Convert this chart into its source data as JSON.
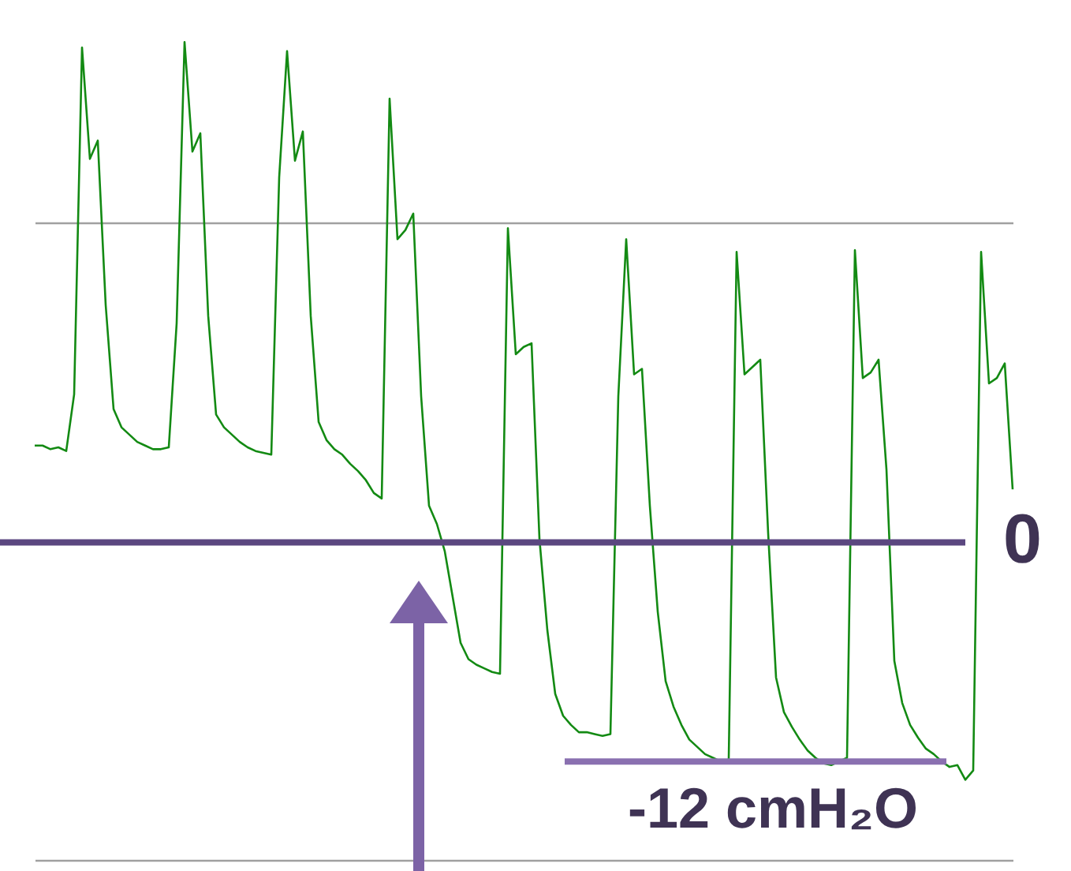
{
  "chart_data": {
    "type": "line",
    "categories": [
      null,
      null,
      null,
      null,
      null,
      null,
      null,
      null,
      null,
      null,
      null,
      null,
      null,
      null,
      null,
      null,
      null,
      null,
      null,
      null,
      null,
      null,
      null,
      null,
      null,
      null,
      null,
      null,
      null,
      null,
      null,
      null,
      null,
      null,
      null,
      null,
      null,
      null,
      null,
      null,
      null,
      null,
      null,
      null,
      null,
      null,
      null,
      null,
      null,
      null,
      null,
      null,
      null,
      null,
      null,
      null,
      null,
      null,
      null,
      null,
      null,
      null,
      null,
      null,
      null,
      null,
      null,
      null,
      null,
      null,
      null,
      null,
      null,
      null,
      null,
      null,
      null,
      null,
      null,
      null,
      null,
      null,
      null,
      null,
      null,
      null,
      null,
      null,
      null,
      null,
      null,
      null,
      null,
      null,
      null,
      null,
      null,
      null,
      null,
      null,
      null,
      null,
      null,
      null,
      null,
      null,
      null,
      null,
      null,
      null,
      null,
      null,
      null,
      null,
      null,
      null,
      null,
      null,
      null,
      null,
      null,
      null,
      null,
      null,
      null
    ],
    "series": [
      {
        "color": "#138a13",
        "values": [
          5.3,
          5.3,
          5.1,
          5.2,
          5.0,
          8.1,
          27.1,
          21.0,
          22.0,
          13.0,
          7.3,
          6.3,
          5.9,
          5.5,
          5.3,
          5.1,
          5.1,
          5.2,
          12.0,
          27.4,
          21.4,
          22.4,
          12.4,
          7.0,
          6.3,
          5.9,
          5.5,
          5.2,
          5.0,
          4.9,
          4.8,
          20.0,
          26.9,
          20.9,
          22.5,
          12.4,
          6.6,
          5.6,
          5.1,
          4.8,
          4.3,
          3.9,
          3.4,
          2.7,
          2.4,
          24.3,
          16.6,
          17.1,
          18.0,
          8.0,
          2.0,
          1.0,
          -0.5,
          -3.0,
          -5.5,
          -6.4,
          -6.7,
          -6.9,
          -7.1,
          -7.2,
          17.2,
          10.3,
          10.7,
          10.9,
          0.2,
          -4.8,
          -8.3,
          -9.5,
          -10.0,
          -10.4,
          -10.4,
          -10.5,
          -10.6,
          -10.5,
          8.0,
          16.6,
          9.2,
          9.5,
          2.0,
          -3.8,
          -7.6,
          -9.0,
          -10.0,
          -10.8,
          -11.2,
          -11.6,
          -11.8,
          -12.0,
          -11.9,
          15.9,
          9.2,
          9.6,
          10.0,
          0.5,
          -7.4,
          -9.3,
          -10.1,
          -10.8,
          -11.4,
          -11.8,
          -12.1,
          -12.2,
          -12.0,
          -11.8,
          16.0,
          9.0,
          9.3,
          10.0,
          4.0,
          -6.5,
          -8.8,
          -10.0,
          -10.7,
          -11.3,
          -11.6,
          -12.0,
          -12.3,
          -12.2,
          -13.0,
          -12.5,
          15.9,
          8.7,
          9.0,
          9.8,
          2.9
        ]
      }
    ],
    "ylim": [
      -18,
      29.7
    ],
    "yticks": [
      {
        "value": 17.5,
        "label": null
      },
      {
        "value": -17.4,
        "label": null
      }
    ],
    "grid": "y",
    "ref_lines": [
      {
        "axis": "y",
        "value": 0,
        "label": "0",
        "color": "#5b4780"
      },
      {
        "axis": "y",
        "value": -12,
        "label": "-12 cmH₂O",
        "color": "#8a70b0"
      }
    ]
  }
}
